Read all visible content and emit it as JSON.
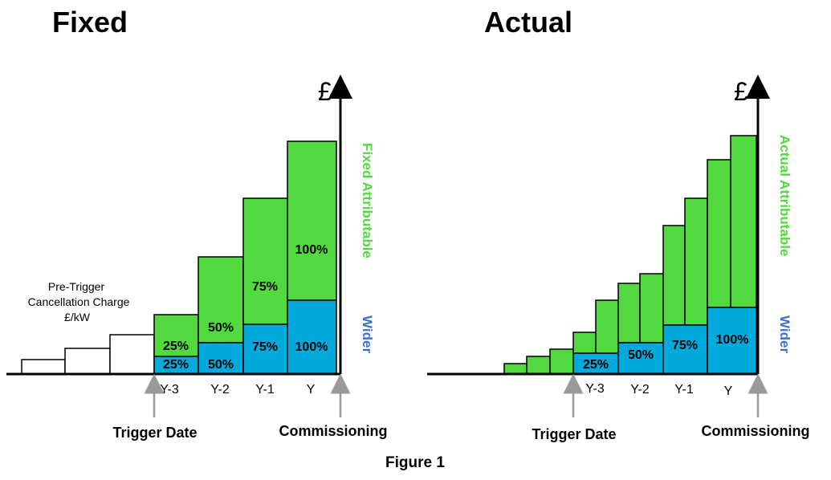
{
  "colors": {
    "green": "#52D93F",
    "blue": "#00AADD",
    "arrow_gray": "#999999",
    "side_green": "#52D93F",
    "side_blue": "#3F6FC8"
  },
  "left": {
    "title": "Fixed",
    "currency": "£",
    "pre_trigger_label": [
      "Pre-Trigger",
      "Cancellation Charge",
      "£/kW"
    ],
    "side_label_green": "Fixed Attributable",
    "side_label_blue": "Wider",
    "years": [
      "Y-3",
      "Y-2",
      "Y-1",
      "Y"
    ],
    "green_pct": [
      "25%",
      "50%",
      "75%",
      "100%"
    ],
    "blue_pct": [
      "25%",
      "50%",
      "75%",
      "100%"
    ],
    "trigger_label": "Trigger Date",
    "commissioning_label": "Commissioning"
  },
  "right": {
    "title": "Actual",
    "currency": "£",
    "side_label_green": "Actual Attributable",
    "side_label_blue": "Wider",
    "years": [
      "Y-3",
      "Y-2",
      "Y-1",
      "Y"
    ],
    "blue_pct": [
      "25%",
      "50%",
      "75%",
      "100%"
    ],
    "trigger_label": "Trigger Date",
    "commissioning_label": "Commissioning"
  },
  "caption": "Figure 1"
}
